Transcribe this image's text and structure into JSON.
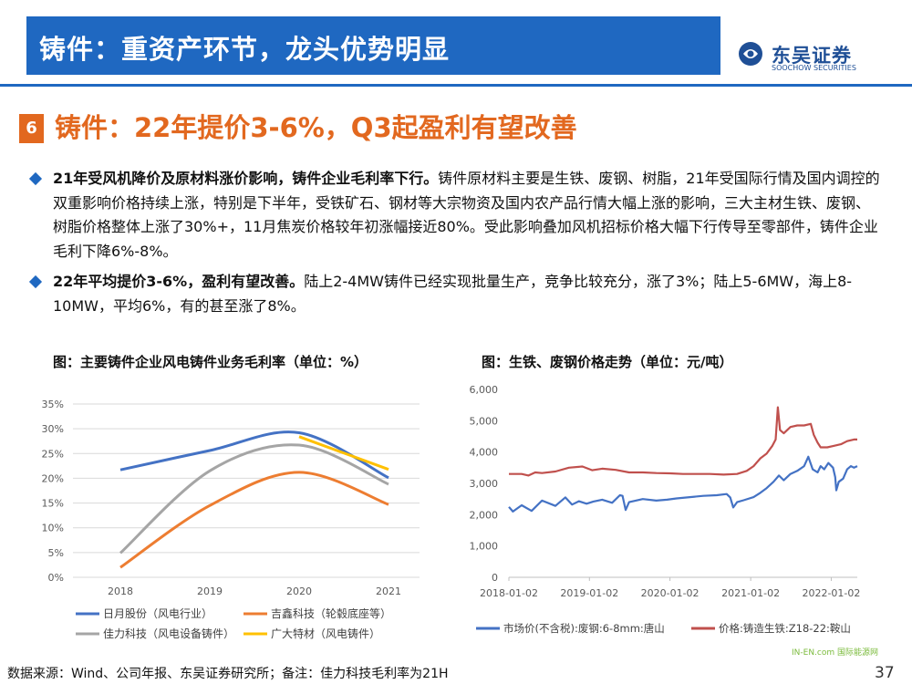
{
  "header": {
    "title": "铸件：重资产环节，龙头优势明显"
  },
  "logo": {
    "cn": "东吴证券",
    "en": "SOOCHOW SECURITIES",
    "mark": "SCS"
  },
  "section": {
    "number": "6",
    "title": "铸件：22年提价3-6%，Q3起盈利有望改善"
  },
  "bullets": [
    {
      "bold": "21年受风机降价及原材料涨价影响，铸件企业毛利率下行。",
      "text": "铸件原材料主要是生铁、废钢、树脂，21年受国际行情及国内调控的双重影响价格持续上涨，特别是下半年，受铁矿石、钢材等大宗物资及国内农产品行情大幅上涨的影响，三大主材生铁、废钢、树脂价格整体上涨了30%+，11月焦炭价格较年初涨幅接近80%。受此影响叠加风机招标价格大幅下行传导至零部件，铸件企业毛利下降6%-8%。"
    },
    {
      "bold": "22年平均提价3-6%，盈利有望改善。",
      "text": "陆上2-4MW铸件已经实现批量生产，竞争比较充分，涨了3%；陆上5-6MW，海上8-10MW，平均6%，有的甚至涨了8%。"
    }
  ],
  "chart_data": [
    {
      "type": "line",
      "title": "图：主要铸件企业风电铸件业务毛利率（单位：%）",
      "x": [
        "2018",
        "2019",
        "2020",
        "2021"
      ],
      "ylim": [
        0,
        35
      ],
      "yticks": [
        "0%",
        "5%",
        "10%",
        "15%",
        "20%",
        "25%",
        "30%",
        "35%"
      ],
      "grid": true,
      "legend": "bottom",
      "series": [
        {
          "name": "日月股份（风电行业）",
          "color": "#4472c4",
          "values": [
            21.7,
            25.6,
            29.2,
            20.1
          ]
        },
        {
          "name": "吉鑫科技（轮毂底座等）",
          "color": "#ed7d31",
          "values": [
            2.0,
            14.5,
            21.2,
            14.7
          ]
        },
        {
          "name": "佳力科技（风电设备铸件）",
          "color": "#a5a5a5",
          "values": [
            4.9,
            21.5,
            26.7,
            18.8
          ]
        },
        {
          "name": "广大特材（风电铸件）",
          "color": "#ffc000",
          "values": [
            null,
            null,
            28.4,
            21.8
          ]
        }
      ]
    },
    {
      "type": "line",
      "title": "图：生铁、废钢价格走势（单位：元/吨）",
      "x_ticks": [
        "2018-01-02",
        "2019-01-02",
        "2020-01-02",
        "2021-01-02",
        "2022-01-02"
      ],
      "x_range": [
        "2018-01-02",
        "2022-04-30"
      ],
      "ylim": [
        0,
        6000
      ],
      "yticks": [
        "0",
        "1,000",
        "2,000",
        "3,000",
        "4,000",
        "5,000",
        "6,000"
      ],
      "grid": false,
      "legend": "bottom",
      "series": [
        {
          "name": "市场价(不含税):废钢:6-8mm:唐山",
          "color": "#4472c4",
          "points": [
            [
              "2018-01-02",
              2250
            ],
            [
              "2018-01-20",
              2100
            ],
            [
              "2018-03-01",
              2300
            ],
            [
              "2018-04-15",
              2120
            ],
            [
              "2018-06-01",
              2450
            ],
            [
              "2018-08-01",
              2280
            ],
            [
              "2018-09-15",
              2550
            ],
            [
              "2018-10-15",
              2320
            ],
            [
              "2018-11-15",
              2430
            ],
            [
              "2018-12-20",
              2350
            ],
            [
              "2019-01-20",
              2420
            ],
            [
              "2019-03-01",
              2480
            ],
            [
              "2019-04-15",
              2380
            ],
            [
              "2019-05-20",
              2620
            ],
            [
              "2019-06-01",
              2600
            ],
            [
              "2019-06-15",
              2150
            ],
            [
              "2019-07-01",
              2400
            ],
            [
              "2019-09-01",
              2500
            ],
            [
              "2019-11-01",
              2450
            ],
            [
              "2019-12-20",
              2480
            ],
            [
              "2020-02-01",
              2520
            ],
            [
              "2020-04-01",
              2560
            ],
            [
              "2020-06-01",
              2600
            ],
            [
              "2020-08-01",
              2620
            ],
            [
              "2020-09-15",
              2660
            ],
            [
              "2020-10-01",
              2550
            ],
            [
              "2020-10-15",
              2230
            ],
            [
              "2020-11-01",
              2400
            ],
            [
              "2020-12-01",
              2460
            ],
            [
              "2021-01-15",
              2560
            ],
            [
              "2021-02-15",
              2700
            ],
            [
              "2021-03-15",
              2850
            ],
            [
              "2021-04-15",
              3050
            ],
            [
              "2021-05-10",
              3250
            ],
            [
              "2021-06-01",
              3100
            ],
            [
              "2021-07-01",
              3300
            ],
            [
              "2021-08-01",
              3400
            ],
            [
              "2021-09-01",
              3550
            ],
            [
              "2021-09-20",
              3850
            ],
            [
              "2021-10-10",
              3450
            ],
            [
              "2021-11-01",
              3350
            ],
            [
              "2021-11-15",
              3550
            ],
            [
              "2021-12-01",
              3450
            ],
            [
              "2021-12-20",
              3650
            ],
            [
              "2022-01-10",
              3500
            ],
            [
              "2022-01-20",
              3200
            ],
            [
              "2022-01-25",
              2780
            ],
            [
              "2022-02-05",
              3050
            ],
            [
              "2022-02-25",
              3150
            ],
            [
              "2022-03-15",
              3450
            ],
            [
              "2022-04-01",
              3550
            ],
            [
              "2022-04-15",
              3500
            ],
            [
              "2022-04-30",
              3550
            ]
          ]
        },
        {
          "name": "价格:铸造生铁:Z18-22:鞍山",
          "color": "#c0504d",
          "points": [
            [
              "2018-01-02",
              3300
            ],
            [
              "2018-03-01",
              3300
            ],
            [
              "2018-04-01",
              3250
            ],
            [
              "2018-05-01",
              3350
            ],
            [
              "2018-06-01",
              3330
            ],
            [
              "2018-08-01",
              3380
            ],
            [
              "2018-10-01",
              3500
            ],
            [
              "2018-12-01",
              3540
            ],
            [
              "2019-01-15",
              3420
            ],
            [
              "2019-03-01",
              3470
            ],
            [
              "2019-05-01",
              3430
            ],
            [
              "2019-07-01",
              3350
            ],
            [
              "2019-09-01",
              3350
            ],
            [
              "2019-11-01",
              3330
            ],
            [
              "2020-01-02",
              3320
            ],
            [
              "2020-03-01",
              3300
            ],
            [
              "2020-05-01",
              3300
            ],
            [
              "2020-07-01",
              3300
            ],
            [
              "2020-09-01",
              3280
            ],
            [
              "2020-11-01",
              3300
            ],
            [
              "2020-12-15",
              3400
            ],
            [
              "2021-01-15",
              3550
            ],
            [
              "2021-02-15",
              3800
            ],
            [
              "2021-03-15",
              3950
            ],
            [
              "2021-04-10",
              4200
            ],
            [
              "2021-04-25",
              4400
            ],
            [
              "2021-05-05",
              5430
            ],
            [
              "2021-05-15",
              4700
            ],
            [
              "2021-06-01",
              4600
            ],
            [
              "2021-07-01",
              4800
            ],
            [
              "2021-08-01",
              4850
            ],
            [
              "2021-09-01",
              4850
            ],
            [
              "2021-10-01",
              4900
            ],
            [
              "2021-10-15",
              4550
            ],
            [
              "2021-11-01",
              4300
            ],
            [
              "2021-11-15",
              4150
            ],
            [
              "2021-12-15",
              4150
            ],
            [
              "2022-01-15",
              4200
            ],
            [
              "2022-02-15",
              4250
            ],
            [
              "2022-03-15",
              4350
            ],
            [
              "2022-04-15",
              4400
            ],
            [
              "2022-04-30",
              4400
            ]
          ]
        }
      ]
    }
  ],
  "footer": {
    "source": "数据来源：Wind、公司年报、东吴证券研究所；备注：佳力科技毛利率为21H",
    "page": "37"
  },
  "watermark": {
    "text": "IN-EN.com 国际能源网"
  }
}
